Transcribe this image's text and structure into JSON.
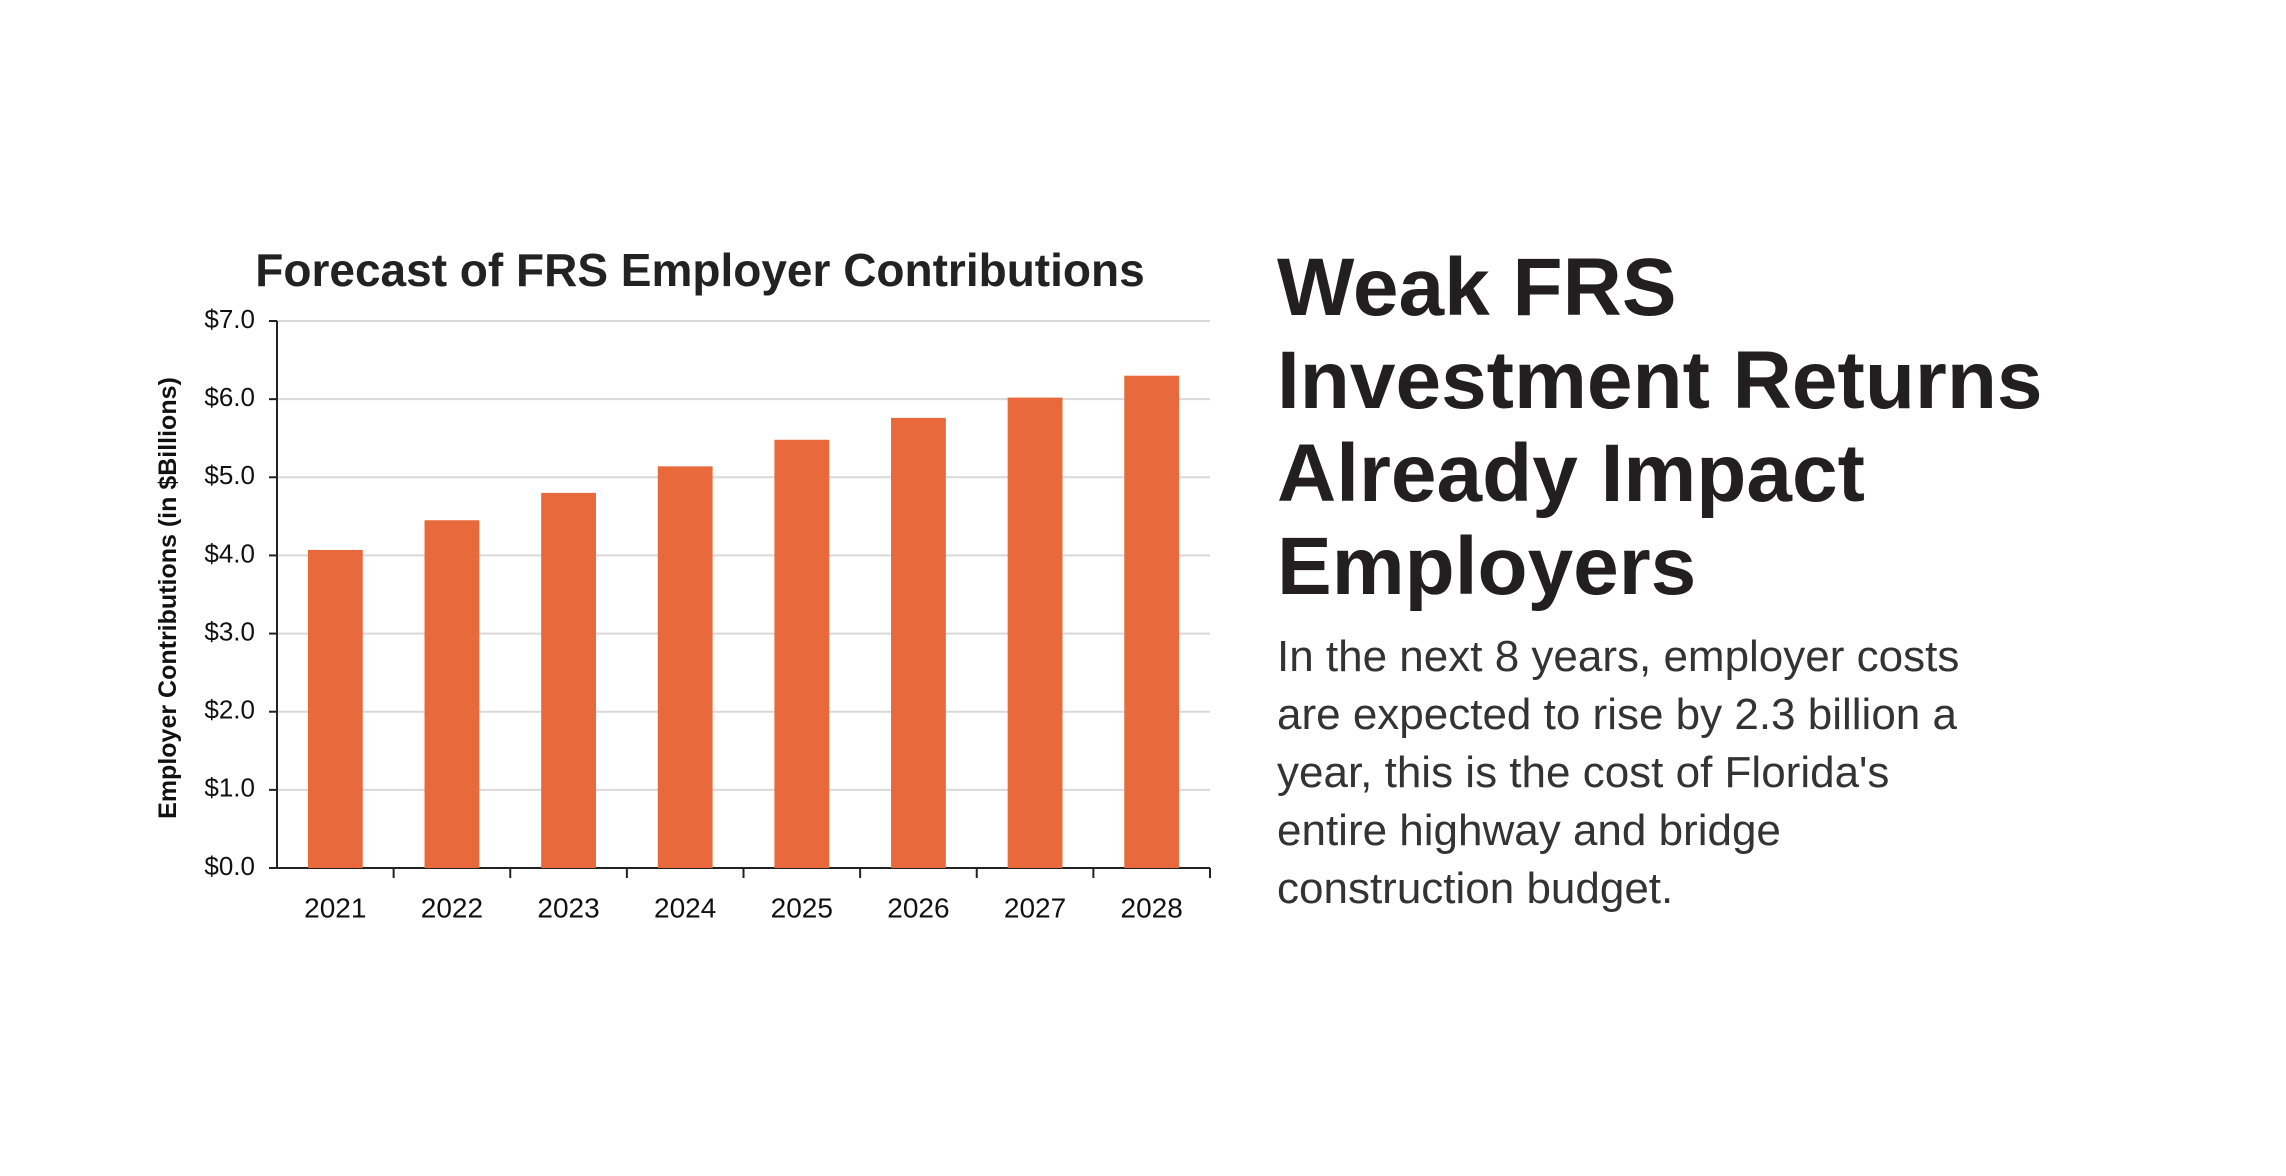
{
  "chart_data": {
    "type": "bar",
    "title": "Forecast of FRS Employer Contributions",
    "y_label": "Employer Contributions (in $Billions)",
    "categories": [
      "2021",
      "2022",
      "2023",
      "2024",
      "2025",
      "2026",
      "2027",
      "2028"
    ],
    "values": [
      4.07,
      4.45,
      4.8,
      5.14,
      5.48,
      5.76,
      6.02,
      6.3
    ],
    "color": "#e8693b",
    "ylim": [
      0,
      7
    ],
    "yticks": [
      {
        "value": 0,
        "label": "$0.0"
      },
      {
        "value": 1,
        "label": "$1.0"
      },
      {
        "value": 2,
        "label": "$2.0"
      },
      {
        "value": 3,
        "label": "$3.0"
      },
      {
        "value": 4,
        "label": "$4.0"
      },
      {
        "value": 5,
        "label": "$5.0"
      },
      {
        "value": 6,
        "label": "$6.0"
      },
      {
        "value": 7,
        "label": "$7.0"
      }
    ],
    "grid": true
  },
  "heading": [
    "Weak FRS",
    "Investment Returns",
    "Already Impact",
    "Employers"
  ],
  "body": [
    "In the next 8 years, employer costs",
    "are expected to rise by 2.3 billion a",
    "year, this is the cost of Florida's",
    "entire highway and bridge",
    "construction budget."
  ]
}
